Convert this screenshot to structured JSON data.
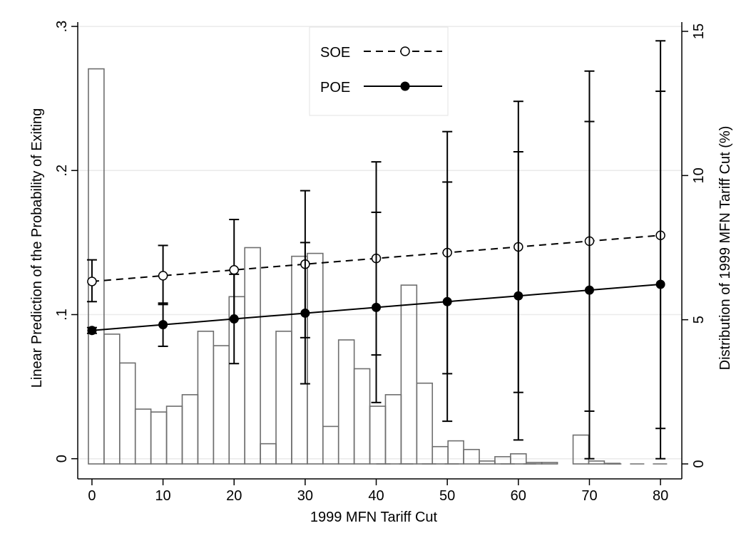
{
  "chart_data": {
    "type": "line",
    "xlabel": "1999 MFN Tariff Cut",
    "ylabel": "Linear Prediction of the Probability of Exiting",
    "y2label": "Distribution of 1999 MFN Tariff Cut (%)",
    "xlim": [
      -2,
      83
    ],
    "ylim": [
      -0.014,
      0.303
    ],
    "y2lim": [
      0,
      15
    ],
    "x_ticks": [
      0,
      10,
      20,
      30,
      40,
      50,
      60,
      70,
      80
    ],
    "y_ticks": [
      0,
      0.1,
      0.2,
      0.3
    ],
    "y_tick_labels": [
      "0",
      ".1",
      ".2",
      ".3"
    ],
    "y2_ticks": [
      0,
      5,
      10,
      15
    ],
    "grid": true,
    "legend_position": "top-center",
    "series": [
      {
        "name": "SOE",
        "style": "dashed-hollow",
        "x": [
          0,
          10,
          20,
          30,
          40,
          50,
          60,
          70,
          80
        ],
        "y": [
          0.123,
          0.127,
          0.131,
          0.135,
          0.139,
          0.143,
          0.147,
          0.151,
          0.155
        ],
        "ci_low": [
          0.109,
          0.107,
          0.097,
          0.084,
          0.072,
          0.059,
          0.046,
          0.033,
          0.021
        ],
        "ci_high": [
          0.138,
          0.148,
          0.166,
          0.186,
          0.206,
          0.227,
          0.248,
          0.269,
          0.29
        ]
      },
      {
        "name": "POE",
        "style": "solid-filled",
        "x": [
          0,
          10,
          20,
          30,
          40,
          50,
          60,
          70,
          80
        ],
        "y": [
          0.089,
          0.093,
          0.097,
          0.101,
          0.105,
          0.109,
          0.113,
          0.117,
          0.121
        ],
        "ci_low": [
          0.087,
          0.078,
          0.066,
          0.052,
          0.039,
          0.026,
          0.013,
          0.0,
          0.0
        ],
        "ci_high": [
          0.091,
          0.108,
          0.128,
          0.15,
          0.171,
          0.192,
          0.213,
          0.234,
          0.255
        ]
      }
    ],
    "histogram": {
      "bin_width": 2.2,
      "start": -0.5,
      "values": [
        13.7,
        4.5,
        3.5,
        1.9,
        1.8,
        2.0,
        2.4,
        4.6,
        4.1,
        5.8,
        7.5,
        0.7,
        4.6,
        7.2,
        7.3,
        1.3,
        4.3,
        3.3,
        2.0,
        2.4,
        6.2,
        2.8,
        0.6,
        0.8,
        0.5,
        0.1,
        0.25,
        0.35,
        0.05,
        0.05,
        0.0,
        1.0,
        0.1,
        0.02,
        0.0,
        0.0,
        0.0,
        0.0,
        0.0,
        0.0,
        0.0,
        0.0,
        0.0,
        0.0,
        0.0,
        0.0,
        0.0,
        0.0,
        0.0,
        0.0,
        0.0,
        0.0,
        0.0,
        0.0,
        0.0,
        0.0,
        0.0,
        0.0,
        0.0,
        0.0,
        0.0,
        0.0,
        0.0,
        0.0,
        0.0,
        0.0,
        0.0,
        0.0,
        0.0,
        0.0,
        0.0,
        0.0,
        0.0,
        0.0,
        0.0,
        0.0,
        0.0,
        0.0,
        0.0,
        0.0,
        0.0,
        0.0,
        0.0,
        0.0,
        0.0,
        0.0,
        0.0,
        0.0,
        0.0,
        0.0,
        0.0
      ],
      "flat_segments": [
        {
          "x0": 40,
          "x1": 52
        },
        {
          "x0": 57.5,
          "x1": 62.5
        },
        {
          "x0": 72.5,
          "x1": 82
        }
      ]
    },
    "colors": {
      "line": "#000000",
      "bar_edge": "#6e6e6e",
      "grid": "#eaeaea",
      "frame": "#000000"
    }
  }
}
